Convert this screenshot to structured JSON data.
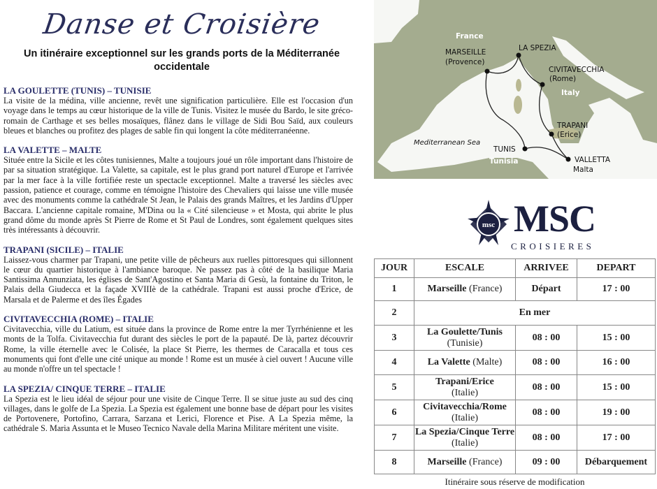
{
  "title": "Danse et Croisière",
  "subtitle": "Un itinéraire exceptionnel sur les grands ports de la Méditerranée occidentale",
  "sections": [
    {
      "heading": "LA GOULETTE (TUNIS) – TUNISIE",
      "text": "La visite de la médina, ville ancienne, revêt une signification particulière. Elle est l'occasion d'un voyage dans le temps au cœur historique de la ville de Tunis. Visitez le musée du Bardo, le site gréco-romain de Carthage et ses belles mosaïques, flânez dans le village de Sidi Bou Saïd, aux couleurs bleues et blanches ou profitez des plages de sable fin qui longent la côte méditerranéenne."
    },
    {
      "heading": "LA VALETTE – MALTE",
      "text": "Située entre la Sicile et les côtes tunisiennes, Malte a toujours joué un rôle important dans l'histoire de par sa situation stratégique. La Valette, sa capitale, est le plus grand port naturel d'Europe et l'arrivée par la mer face à la ville fortifiée reste un spectacle exceptionnel. Malte a traversé les siècles avec passion, patience et courage, comme en témoigne l'histoire des Chevaliers qui laisse une ville musée avec des monuments comme la cathédrale St Jean, le Palais des grands Maîtres, et les Jardins d'Upper Baccara. L'ancienne capitale romaine, M'Dina ou la « Cité silencieuse » et Mosta, qui abrite le plus grand dôme du monde après St Pierre de Rome et St Paul de Londres, sont également quelques sites très intéressants à découvrir."
    },
    {
      "heading": "TRAPANI (SICILE) – ITALIE",
      "text": "Laissez-vous charmer par Trapani, une petite ville de pêcheurs aux ruelles pittoresques qui sillonnent le cœur du quartier historique à l'ambiance baroque. Ne passez pas à côté de la basilique Maria Santissima Annunziata, les églises de Sant'Agostino et Santa Maria di Gesù, la fontaine du Triton, le Palais della Giudecca et la façade XVIIIè de la cathédrale. Trapani est aussi proche d'Erice, de Marsala et de Palerme et des îles Égades"
    },
    {
      "heading": "CIVITAVECCHIA (ROME) – ITALIE",
      "text": "Civitavecchia, ville du Latium, est située dans la province de Rome entre la mer Tyrrhénienne et les monts de la Tolfa. Civitavecchia fut durant des siècles le port de la papauté. De là, partez découvrir Rome, la ville éternelle avec le Colisée, la place St Pierre, les thermes de Caracalla et tous ces monuments qui font d'elle une cité unique au monde ! Rome est un musée à ciel ouvert ! Aucune ville au monde n'offre un tel spectacle !"
    },
    {
      "heading": "LA SPEZIA/ CINQUE TERRE – ITALIE",
      "text": "La Spezia est le lieu idéal de séjour pour une visite de Cinque Terre. Il se situe juste au sud des cinq villages, dans le golfe de La Spezia. La Spezia est également une bonne base de départ pour les visites de Portovenere, Portofino, Carrara, Sarzana et Lerici, Florence et Pise. A La Spezia même, la cathédrale S. Maria Assunta et le Museo Tecnico Navale della Marina Militare méritent une visite."
    }
  ],
  "map": {
    "france": "France",
    "italy": "Italy",
    "tunisia": "Tunisia",
    "sea": "Mediterranean Sea",
    "marseille": "MARSEILLE",
    "provence": "(Provence)",
    "laspezia": "LA SPEZIA",
    "civitavecchia": "CIVITAVECCHIA",
    "rome": "(Rome)",
    "trapani": "TRAPANI",
    "erice": "(Erice)",
    "tunis": "TUNIS",
    "valletta": "VALLETTA",
    "malta": "Malta"
  },
  "logo": {
    "brand": "MSC",
    "sub": "CROISIERES",
    "emblem": "msc"
  },
  "table": {
    "headers": [
      "JOUR",
      "ESCALE",
      "ARRIVEE",
      "DEPART"
    ],
    "rows": [
      {
        "jour": "1",
        "port": "Marseille",
        "country": "(France)",
        "arr": "Départ",
        "dep": "17 : 00"
      },
      {
        "jour": "2",
        "sea": "En mer"
      },
      {
        "jour": "3",
        "port": "La Goulette/Tunis",
        "country": "(Tunisie)",
        "arr": "08 : 00",
        "dep": "15 : 00"
      },
      {
        "jour": "4",
        "port": "La Valette",
        "country": "(Malte)",
        "arr": "08 : 00",
        "dep": "16 : 00"
      },
      {
        "jour": "5",
        "port": "Trapani/Erice",
        "country": "(Italie)",
        "arr": "08 : 00",
        "dep": "15 : 00"
      },
      {
        "jour": "6",
        "port": "Civitavecchia/Rome",
        "country": "(Italie)",
        "arr": "08 : 00",
        "dep": "19 : 00"
      },
      {
        "jour": "7",
        "port": "La Spezia/Cinque Terre",
        "country": "(Italie)",
        "arr": "08 : 00",
        "dep": "17 : 00"
      },
      {
        "jour": "8",
        "port": "Marseille",
        "country": "(France)",
        "arr": "09 : 00",
        "dep": "Débarquement"
      }
    ]
  },
  "note": "Itinéraire sous réserve de modification"
}
